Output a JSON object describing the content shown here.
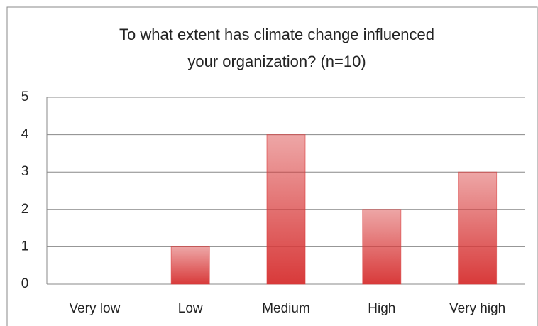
{
  "chart_data": {
    "type": "bar",
    "title": [
      "To what extent has climate change influenced",
      "your organization? (n=10)"
    ],
    "categories": [
      "Very low",
      "Low",
      "Medium",
      "High",
      "Very high"
    ],
    "values": [
      0,
      1,
      4,
      2,
      3
    ],
    "color": "#d83a3a",
    "ylim": [
      0,
      5
    ],
    "yticks": [
      0,
      1,
      2,
      3,
      4,
      5
    ],
    "grid": true
  }
}
